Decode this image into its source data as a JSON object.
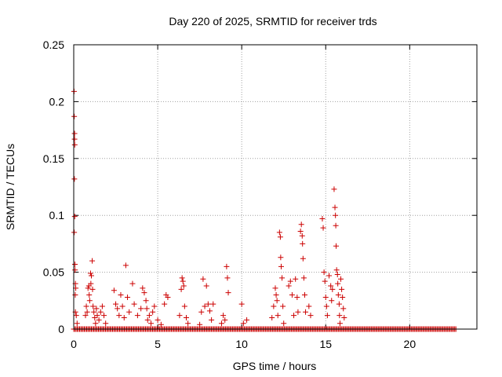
{
  "chart_data": {
    "type": "scatter",
    "title": "Day 220 of 2025, SRMTID for receiver trds",
    "xlabel": "GPS time / hours",
    "ylabel": "SRMTID / TECUs",
    "xlim": [
      0,
      24
    ],
    "ylim": [
      0,
      0.25
    ],
    "xticks": [
      0,
      5,
      10,
      15,
      20
    ],
    "xtick_labels": [
      "0",
      "5",
      "10",
      "15",
      "20"
    ],
    "yticks": [
      0,
      0.05,
      0.1,
      0.15,
      0.2,
      0.25
    ],
    "ytick_labels": [
      "0",
      "0.05",
      "0.1",
      "0.15",
      "0.2",
      "0.25"
    ],
    "grid": true,
    "marker": "+",
    "color": "#cc0000",
    "series": [
      {
        "name": "SRMTID",
        "points": [
          [
            0.02,
            0.209
          ],
          [
            0.03,
            0.187
          ],
          [
            0.05,
            0.172
          ],
          [
            0.05,
            0.167
          ],
          [
            0.06,
            0.162
          ],
          [
            0.04,
            0.132
          ],
          [
            0.06,
            0.099
          ],
          [
            0.03,
            0.085
          ],
          [
            0.07,
            0.057
          ],
          [
            0.08,
            0.052
          ],
          [
            0.1,
            0.04
          ],
          [
            0.12,
            0.036
          ],
          [
            0.09,
            0.03
          ],
          [
            0.1,
            0.015
          ],
          [
            0.15,
            0.012
          ],
          [
            0.2,
            0.005
          ],
          [
            0.7,
            0.012
          ],
          [
            0.75,
            0.02
          ],
          [
            0.8,
            0.015
          ],
          [
            0.85,
            0.036
          ],
          [
            0.9,
            0.038
          ],
          [
            0.92,
            0.03
          ],
          [
            0.95,
            0.025
          ],
          [
            1.0,
            0.049
          ],
          [
            1.02,
            0.04
          ],
          [
            1.05,
            0.047
          ],
          [
            1.1,
            0.06
          ],
          [
            1.12,
            0.035
          ],
          [
            1.15,
            0.02
          ],
          [
            1.2,
            0.015
          ],
          [
            1.25,
            0.01
          ],
          [
            1.3,
            0.005
          ],
          [
            1.35,
            0.018
          ],
          [
            1.4,
            0.012
          ],
          [
            1.5,
            0.008
          ],
          [
            1.6,
            0.015
          ],
          [
            1.7,
            0.02
          ],
          [
            1.8,
            0.012
          ],
          [
            1.9,
            0.005
          ],
          [
            2.4,
            0.034
          ],
          [
            2.5,
            0.022
          ],
          [
            2.6,
            0.018
          ],
          [
            2.7,
            0.012
          ],
          [
            2.8,
            0.03
          ],
          [
            2.9,
            0.02
          ],
          [
            3.0,
            0.01
          ],
          [
            3.1,
            0.056
          ],
          [
            3.2,
            0.028
          ],
          [
            3.3,
            0.015
          ],
          [
            3.5,
            0.04
          ],
          [
            3.6,
            0.022
          ],
          [
            3.8,
            0.012
          ],
          [
            4.0,
            0.018
          ],
          [
            4.1,
            0.036
          ],
          [
            4.2,
            0.032
          ],
          [
            4.3,
            0.025
          ],
          [
            4.35,
            0.018
          ],
          [
            4.4,
            0.008
          ],
          [
            4.5,
            0.012
          ],
          [
            4.6,
            0.005
          ],
          [
            4.7,
            0.015
          ],
          [
            4.8,
            0.02
          ],
          [
            5.0,
            0.008
          ],
          [
            5.2,
            0.004
          ],
          [
            5.4,
            0.022
          ],
          [
            5.5,
            0.03
          ],
          [
            5.6,
            0.028
          ],
          [
            6.3,
            0.012
          ],
          [
            6.4,
            0.035
          ],
          [
            6.45,
            0.045
          ],
          [
            6.5,
            0.042
          ],
          [
            6.55,
            0.038
          ],
          [
            6.6,
            0.02
          ],
          [
            6.7,
            0.01
          ],
          [
            6.8,
            0.005
          ],
          [
            7.5,
            0.004
          ],
          [
            7.6,
            0.015
          ],
          [
            7.7,
            0.044
          ],
          [
            7.8,
            0.02
          ],
          [
            7.9,
            0.038
          ],
          [
            8.0,
            0.022
          ],
          [
            8.1,
            0.016
          ],
          [
            8.2,
            0.008
          ],
          [
            8.3,
            0.022
          ],
          [
            8.8,
            0.005
          ],
          [
            8.9,
            0.012
          ],
          [
            9.0,
            0.008
          ],
          [
            9.1,
            0.055
          ],
          [
            9.15,
            0.045
          ],
          [
            9.2,
            0.032
          ],
          [
            10.0,
            0.022
          ],
          [
            10.1,
            0.005
          ],
          [
            10.3,
            0.008
          ],
          [
            11.8,
            0.01
          ],
          [
            11.9,
            0.02
          ],
          [
            12.0,
            0.036
          ],
          [
            12.05,
            0.03
          ],
          [
            12.1,
            0.025
          ],
          [
            12.15,
            0.012
          ],
          [
            12.25,
            0.085
          ],
          [
            12.3,
            0.081
          ],
          [
            12.32,
            0.063
          ],
          [
            12.35,
            0.055
          ],
          [
            12.4,
            0.045
          ],
          [
            12.45,
            0.02
          ],
          [
            12.5,
            0.005
          ],
          [
            12.8,
            0.038
          ],
          [
            12.9,
            0.042
          ],
          [
            13.0,
            0.03
          ],
          [
            13.1,
            0.012
          ],
          [
            13.2,
            0.044
          ],
          [
            13.3,
            0.028
          ],
          [
            13.35,
            0.015
          ],
          [
            13.5,
            0.086
          ],
          [
            13.55,
            0.092
          ],
          [
            13.6,
            0.082
          ],
          [
            13.62,
            0.075
          ],
          [
            13.65,
            0.062
          ],
          [
            13.7,
            0.045
          ],
          [
            13.75,
            0.03
          ],
          [
            13.8,
            0.015
          ],
          [
            14.0,
            0.02
          ],
          [
            14.1,
            0.012
          ],
          [
            14.8,
            0.097
          ],
          [
            14.85,
            0.089
          ],
          [
            14.9,
            0.05
          ],
          [
            14.95,
            0.042
          ],
          [
            15.0,
            0.028
          ],
          [
            15.05,
            0.02
          ],
          [
            15.1,
            0.012
          ],
          [
            15.2,
            0.047
          ],
          [
            15.3,
            0.038
          ],
          [
            15.35,
            0.025
          ],
          [
            15.4,
            0.035
          ],
          [
            15.5,
            0.123
          ],
          [
            15.55,
            0.107
          ],
          [
            15.58,
            0.1
          ],
          [
            15.6,
            0.091
          ],
          [
            15.62,
            0.073
          ],
          [
            15.65,
            0.052
          ],
          [
            15.7,
            0.048
          ],
          [
            15.72,
            0.04
          ],
          [
            15.75,
            0.03
          ],
          [
            15.8,
            0.022
          ],
          [
            15.82,
            0.012
          ],
          [
            15.85,
            0.005
          ],
          [
            15.9,
            0.044
          ],
          [
            15.95,
            0.035
          ],
          [
            16.0,
            0.028
          ],
          [
            16.05,
            0.018
          ],
          [
            16.1,
            0.01
          ]
        ]
      }
    ],
    "baseline": {
      "value": 0,
      "x_start": 0.0,
      "x_end": 22.8,
      "x_step": 0.07
    }
  }
}
